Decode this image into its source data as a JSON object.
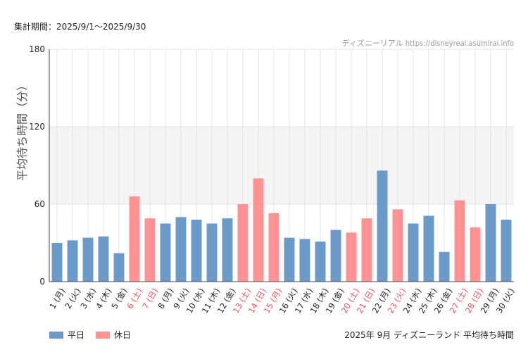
{
  "header": {
    "period": "集計期間：2025/9/1～2025/9/30",
    "credit": "ディズニーリアル https://disneyreal.asumirai.info"
  },
  "colors": {
    "weekday": "#6b9ac9",
    "holiday": "#ff9393",
    "holiday_label": "#e8535a",
    "band": "#f4f4f4",
    "grid": "#e4e4e4"
  },
  "legend": {
    "weekday": "平日",
    "holiday": "休日"
  },
  "footer": {
    "title": "2025年 9月 ディズニーランド 平均待ち時間"
  },
  "chart_data": {
    "type": "bar",
    "ylabel": "平均待ち時間（分）",
    "xlabel": "",
    "ylim": [
      0,
      180
    ],
    "yticks": [
      0,
      60,
      120,
      180
    ],
    "shaded_band": [
      60,
      120
    ],
    "categories": [
      "1 (月)",
      "2 (火)",
      "3 (水)",
      "4 (木)",
      "5 (金)",
      "6 (土)",
      "7 (日)",
      "8 (月)",
      "9 (火)",
      "10 (水)",
      "11 (木)",
      "12 (金)",
      "13 (土)",
      "14 (日)",
      "15 (月)",
      "16 (火)",
      "17 (水)",
      "18 (木)",
      "19 (金)",
      "20 (土)",
      "21 (日)",
      "22 (月)",
      "23 (火)",
      "24 (水)",
      "25 (木)",
      "26 (金)",
      "27 (土)",
      "28 (日)",
      "29 (月)",
      "30 (火)"
    ],
    "values": [
      30,
      32,
      34,
      35,
      22,
      66,
      49,
      45,
      50,
      48,
      45,
      49,
      60,
      80,
      53,
      34,
      33,
      31,
      40,
      38,
      49,
      86,
      56,
      45,
      51,
      23,
      63,
      42,
      60,
      48
    ],
    "holiday": [
      false,
      false,
      false,
      false,
      false,
      true,
      true,
      false,
      false,
      false,
      false,
      false,
      true,
      true,
      true,
      false,
      false,
      false,
      false,
      true,
      true,
      false,
      true,
      false,
      false,
      false,
      true,
      true,
      false,
      false
    ],
    "series": [
      {
        "name": "平日",
        "kind": "weekday"
      },
      {
        "name": "休日",
        "kind": "holiday"
      }
    ]
  }
}
